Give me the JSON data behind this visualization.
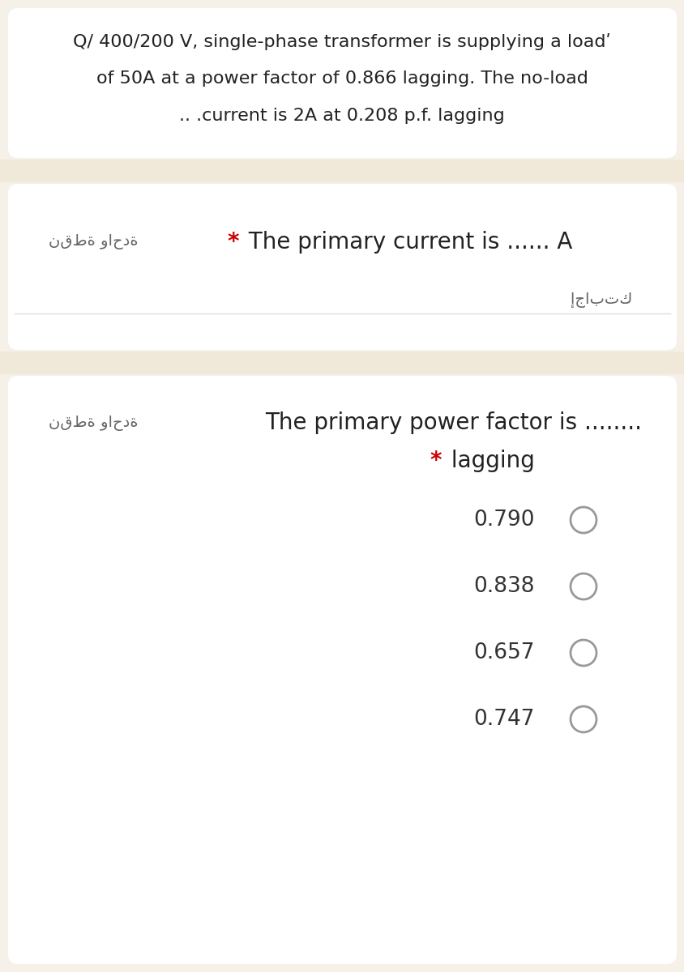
{
  "bg_color": "#f5f0e8",
  "card_color": "#ffffff",
  "separator_color": "#f0e8d8",
  "title_text_line1": "Q/ 400/200 V, single-phase transformer is supplying a loadʹ",
  "title_text_line2": "of 50A at a power factor of 0.866 lagging. The no-load",
  "title_text_line3": ".. .current is 2A at 0.208 p.f. lagging",
  "title_fontsize": 16,
  "title_color": "#222222",
  "arabic_label1_display": "نقطة واحدة",
  "arabic_label2_display": "نقطة واحدة",
  "q1_star": "*",
  "q1_text": " The primary current is ...... A",
  "q1_star_color": "#cc0000",
  "q1_fontsize": 20,
  "arabic_answer_display": "إجابتك",
  "q2_text": "The primary power factor is ........",
  "q2_star": "*",
  "q2_sub": " lagging",
  "q2_star_color": "#cc0000",
  "q2_fontsize": 20,
  "options": [
    "0.790",
    "0.838",
    "0.657",
    "0.747"
  ],
  "option_fontsize": 19,
  "option_color": "#333333",
  "circle_edge_color": "#999999",
  "line_color": "#dddddd",
  "arabic_fontsize": 14,
  "arabic_color": "#666666"
}
